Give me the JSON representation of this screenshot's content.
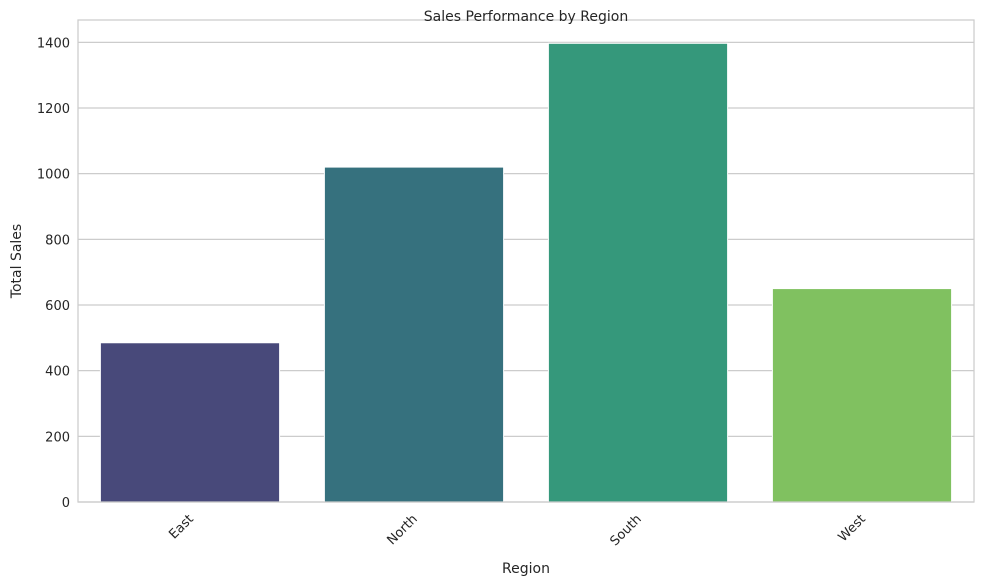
{
  "chart_data": {
    "type": "bar",
    "title": "Sales Performance by Region",
    "xlabel": "Region",
    "ylabel": "Total Sales",
    "categories": [
      "East",
      "North",
      "South",
      "West"
    ],
    "values": [
      485,
      1020,
      1397,
      650
    ],
    "ylim": [
      0,
      1468
    ],
    "yticks": [
      0,
      200,
      400,
      600,
      800,
      1000,
      1200,
      1400
    ],
    "colors": [
      "#48497a",
      "#36717e",
      "#35987b",
      "#80c160"
    ],
    "grid": true,
    "legend": "none"
  }
}
